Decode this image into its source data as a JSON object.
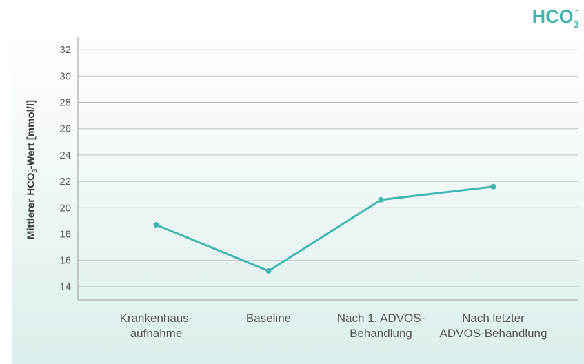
{
  "title": {
    "main": "HCO",
    "sub": "3",
    "sup": "-"
  },
  "colors": {
    "line": "#42b5b0",
    "grid": "#bfbfbf",
    "axis": "#999999",
    "text": "#555555"
  },
  "chart_data": {
    "type": "line",
    "title": "HCO3-",
    "ylabel": {
      "before": "Mittlerer HCO",
      "sub": "3",
      "sup": "-",
      "after": "-Wert [mmol/l]"
    },
    "xlabel": "",
    "categories": [
      [
        "Krankenhaus-",
        "aufnahme"
      ],
      [
        "Baseline"
      ],
      [
        "Nach 1. ADVOS-",
        "Behandlung"
      ],
      [
        "Nach letzter",
        "ADVOS-Behandlung"
      ]
    ],
    "series": [
      {
        "values": [
          18.7,
          15.2,
          20.6,
          21.6
        ]
      }
    ],
    "ylim": [
      13,
      33
    ],
    "yticks": [
      14,
      16,
      18,
      20,
      22,
      24,
      26,
      28,
      30,
      32
    ],
    "grid": true
  }
}
